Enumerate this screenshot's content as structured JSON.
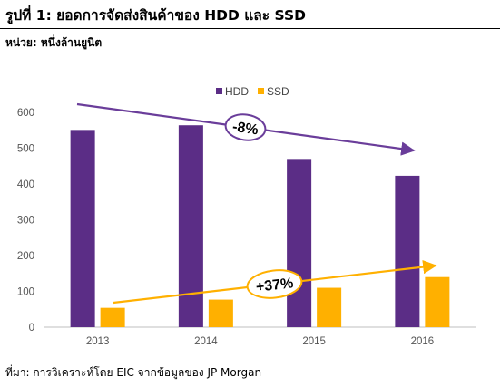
{
  "figure": {
    "title": "รูปที่ 1: ยอดการจัดส่งสินค้าของ HDD และ SSD",
    "unit": "หน่วย: หนึ่งล้านยูนิต",
    "source": "ที่มา: การวิเคราะห์โดย EIC จากข้อมูลของ JP Morgan"
  },
  "chart_data": {
    "type": "bar",
    "categories": [
      "2013",
      "2014",
      "2015",
      "2016"
    ],
    "series": [
      {
        "name": "HDD",
        "values": [
          551,
          564,
          470,
          423
        ],
        "color": "#5b2d86"
      },
      {
        "name": "SSD",
        "values": [
          54,
          77,
          110,
          140
        ],
        "color": "#ffb000"
      }
    ],
    "ylim": [
      0,
      600
    ],
    "yticks": [
      0,
      100,
      200,
      300,
      400,
      500,
      600
    ],
    "xlabel": "",
    "ylabel": "",
    "grid": false,
    "legend": "top-center",
    "annotations": [
      {
        "label": "-8%",
        "series": "HDD",
        "trend": "down",
        "color": "#6a3d9a"
      },
      {
        "label": "+37%",
        "series": "SSD",
        "trend": "up",
        "color": "#ffb000"
      }
    ]
  }
}
